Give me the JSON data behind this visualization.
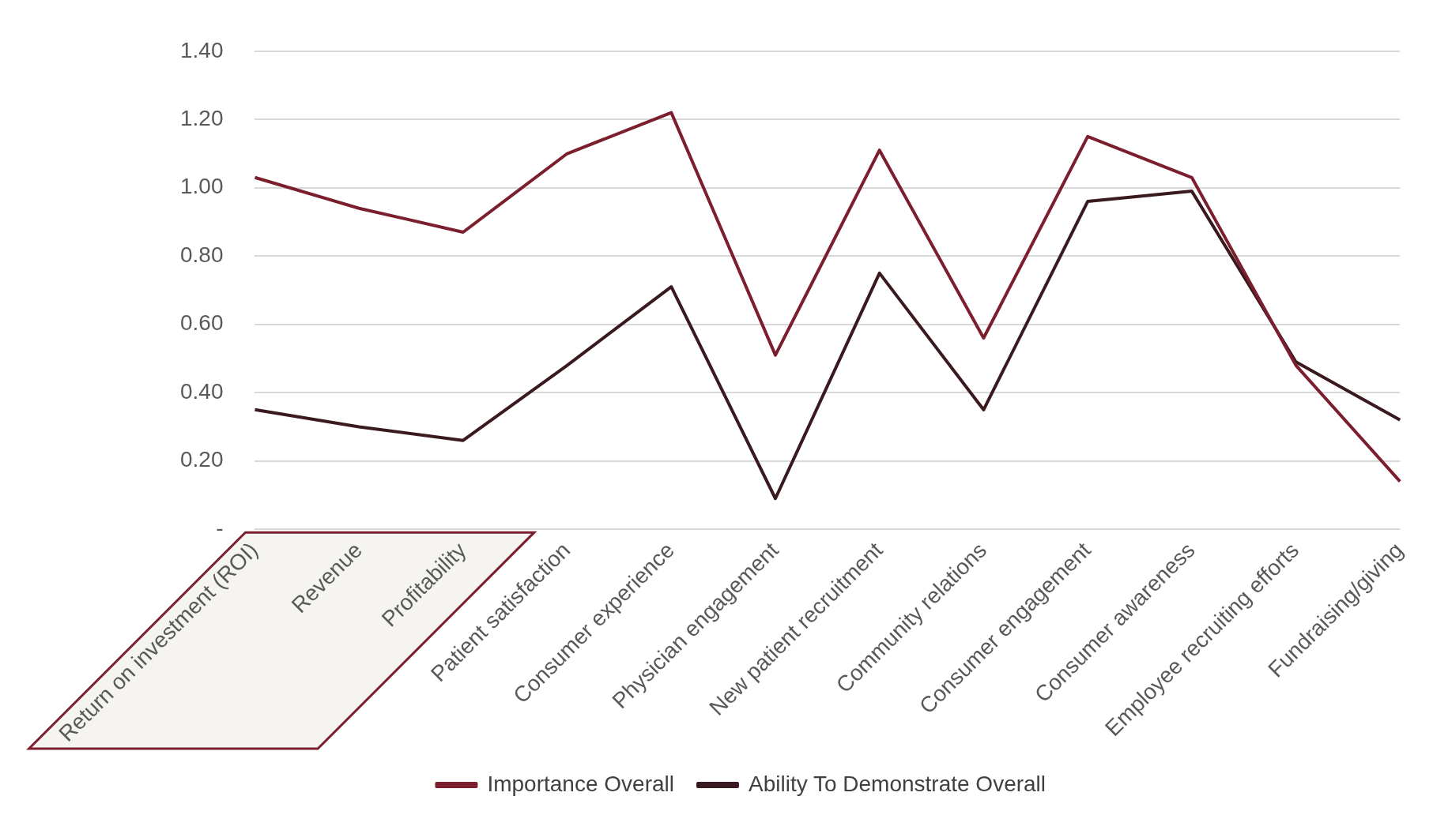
{
  "chart_data": {
    "type": "line",
    "categories": [
      "Return on investment (ROI)",
      "Revenue",
      "Profitability",
      "Patient satisfaction",
      "Consumer experience",
      "Physician engagement",
      "New patient recruitment",
      "Community relations",
      "Consumer engagement",
      "Consumer awareness",
      "Employee recruiting efforts",
      "Fundraising/giving"
    ],
    "series": [
      {
        "name": "Importance Overall",
        "color": "#7b1f2e",
        "values": [
          1.03,
          0.94,
          0.87,
          1.1,
          1.22,
          0.51,
          1.11,
          0.56,
          1.15,
          1.03,
          0.48,
          0.14
        ]
      },
      {
        "name": "Ability To Demonstrate Overall",
        "color": "#3a1a1e",
        "values": [
          0.35,
          0.3,
          0.26,
          0.48,
          0.71,
          0.09,
          0.75,
          0.35,
          0.96,
          0.99,
          0.49,
          0.32
        ]
      }
    ],
    "ylim": [
      0,
      1.4
    ],
    "yticks": [
      {
        "value": 0,
        "label": "-"
      },
      {
        "value": 0.2,
        "label": "0.20"
      },
      {
        "value": 0.4,
        "label": "0.40"
      },
      {
        "value": 0.6,
        "label": "0.60"
      },
      {
        "value": 0.8,
        "label": "0.80"
      },
      {
        "value": 1.0,
        "label": "1.00"
      },
      {
        "value": 1.2,
        "label": "1.20"
      },
      {
        "value": 1.4,
        "label": "1.40"
      }
    ],
    "grid": "y",
    "legend": "bottom",
    "marker": "none",
    "line_style": "solid"
  }
}
